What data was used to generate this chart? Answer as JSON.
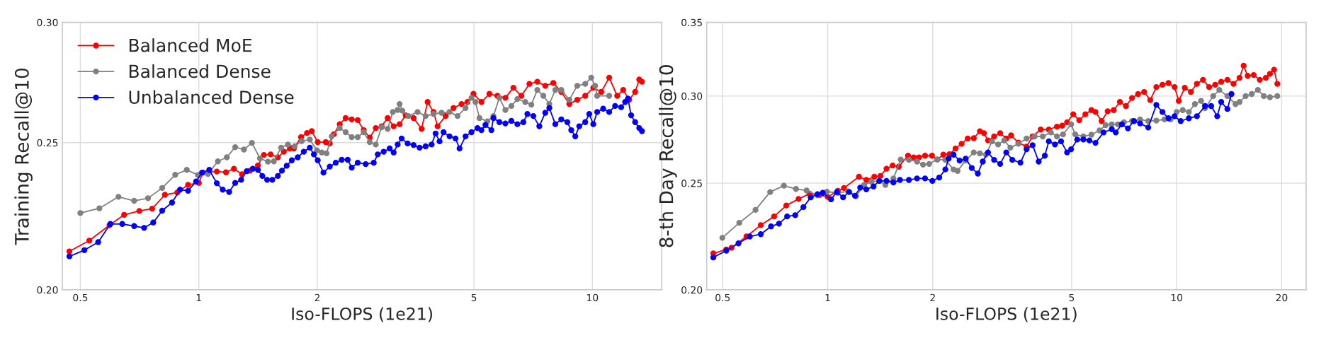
{
  "chart_data": [
    {
      "type": "line",
      "xlabel": "Iso-FLOPS (1e21)",
      "ylabel": "Training Recall@10",
      "log": "xy",
      "grid": true,
      "marker": "circle",
      "line_style": "solid",
      "legend": "top left",
      "xlim": [
        0.45,
        15
      ],
      "xticks": [
        0.5,
        1,
        2,
        5,
        10
      ],
      "ylim": [
        0.2,
        0.3
      ],
      "yticks": [
        {
          "value": 0.2,
          "label": "0.20"
        },
        {
          "value": 0.25,
          "label": "0.25"
        },
        {
          "value": 0.3,
          "label": "0.30"
        }
      ],
      "series": [
        {
          "name": "Balanced MoE",
          "color": "#ff0000",
          "x": [
            0.469,
            0.527,
            0.593,
            0.646,
            0.706,
            0.761,
            0.82,
            0.882,
            0.939,
            1,
            1.024,
            1.111,
            1.172,
            1.228,
            1.287,
            1.348,
            1.413,
            1.463,
            1.522,
            1.588,
            1.644,
            1.703,
            1.744,
            1.818,
            1.883,
            1.936,
            2.005,
            2.101,
            2.151,
            2.202,
            2.28,
            2.361,
            2.446,
            2.533,
            2.624,
            2.718,
            2.815,
            2.914,
            3.018,
            3.126,
            3.237,
            3.353,
            3.513,
            3.681,
            3.813,
            3.948,
            4.042,
            4.235,
            4.437,
            4.65,
            4.815,
            4.986,
            5.224,
            5.473,
            5.735,
            6.009,
            6.297,
            6.599,
            6.916,
            7.244,
            7.59,
            7.954,
            8.335,
            8.734,
            9.152,
            9.588,
            10.05,
            10.53,
            11.03,
            11.56,
            11.97,
            12.4,
            12.84,
            13.15,
            13.36
          ],
          "values": [
            0.212,
            0.2155,
            0.2206,
            0.2241,
            0.2254,
            0.2262,
            0.231,
            0.2318,
            0.2345,
            0.2352,
            0.2389,
            0.2393,
            0.239,
            0.2403,
            0.2383,
            0.2396,
            0.2415,
            0.2454,
            0.2456,
            0.2445,
            0.2466,
            0.2478,
            0.2478,
            0.2521,
            0.2537,
            0.2544,
            0.2502,
            0.2502,
            0.2497,
            0.2532,
            0.2571,
            0.2595,
            0.259,
            0.2587,
            0.2548,
            0.2519,
            0.2556,
            0.2563,
            0.2595,
            0.2563,
            0.2571,
            0.2606,
            0.2595,
            0.2553,
            0.2659,
            0.2619,
            0.2563,
            0.2603,
            0.2635,
            0.2651,
            0.2659,
            0.2692,
            0.2659,
            0.2692,
            0.2684,
            0.2676,
            0.2717,
            0.2684,
            0.2733,
            0.2742,
            0.2725,
            0.2737,
            0.27,
            0.2651,
            0.2668,
            0.2684,
            0.2717,
            0.27,
            0.2759,
            0.2684,
            0.2708,
            0.2668,
            0.27,
            0.2751,
            0.2742
          ]
        },
        {
          "name": "Balanced Dense",
          "color": "#808080",
          "x": [
            0.5,
            0.559,
            0.625,
            0.685,
            0.743,
            0.807,
            0.871,
            0.932,
            0.995,
            1.055,
            1.118,
            1.178,
            1.237,
            1.302,
            1.364,
            1.43,
            1.498,
            1.551,
            1.618,
            1.684,
            1.752,
            1.826,
            1.914,
            1.996,
            2.053,
            2.111,
            2.176,
            2.28,
            2.361,
            2.446,
            2.533,
            2.624,
            2.718,
            2.815,
            2.914,
            3.018,
            3.111,
            3.2,
            3.237,
            3.29,
            3.408,
            3.595,
            3.769,
            3.948,
            4.137,
            4.335,
            4.543,
            4.76,
            4.928,
            5.045,
            5.164,
            5.41,
            5.603,
            5.802,
            6.009,
            6.224,
            6.446,
            6.753,
            6.994,
            7.244,
            7.503,
            7.771,
            8.049,
            8.335,
            8.734,
            9.152,
            9.588,
            9.93,
            10.16,
            10.28,
            11.03
          ],
          "values": [
            0.2247,
            0.2263,
            0.2303,
            0.2289,
            0.2298,
            0.2334,
            0.2381,
            0.2399,
            0.238,
            0.2384,
            0.243,
            0.2445,
            0.2483,
            0.2474,
            0.2499,
            0.2441,
            0.2429,
            0.243,
            0.2481,
            0.2493,
            0.2486,
            0.2506,
            0.2512,
            0.2471,
            0.2463,
            0.246,
            0.2524,
            0.2556,
            0.254,
            0.2521,
            0.2521,
            0.254,
            0.2502,
            0.2493,
            0.2559,
            0.2553,
            0.2619,
            0.2627,
            0.2651,
            0.2624,
            0.2603,
            0.2619,
            0.2603,
            0.2611,
            0.2616,
            0.2619,
            0.2603,
            0.2635,
            0.2676,
            0.2659,
            0.2595,
            0.2582,
            0.2603,
            0.2676,
            0.2627,
            0.2643,
            0.2671,
            0.2659,
            0.2648,
            0.2708,
            0.2684,
            0.2651,
            0.2708,
            0.2708,
            0.2668,
            0.2725,
            0.2733,
            0.2759,
            0.2725,
            0.2684,
            0.2684
          ]
        },
        {
          "name": "Unbalanced Dense",
          "color": "#0000ff",
          "x": [
            0.469,
            0.512,
            0.555,
            0.596,
            0.639,
            0.685,
            0.726,
            0.766,
            0.807,
            0.855,
            0.896,
            0.939,
            0.984,
            1.019,
            1.063,
            1.111,
            1.15,
            1.194,
            1.237,
            1.281,
            1.323,
            1.371,
            1.413,
            1.45,
            1.491,
            1.537,
            1.588,
            1.626,
            1.672,
            1.723,
            1.784,
            1.848,
            1.914,
            1.96,
            2.005,
            2.073,
            2.151,
            2.228,
            2.307,
            2.389,
            2.446,
            2.533,
            2.654,
            2.782,
            2.848,
            2.949,
            3.054,
            3.126,
            3.2,
            3.275,
            3.392,
            3.513,
            3.638,
            3.769,
            3.903,
            3.995,
            4.089,
            4.186,
            4.335,
            4.489,
            4.596,
            4.76,
            4.928,
            5.104,
            5.224,
            5.348,
            5.538,
            5.603,
            5.802,
            6.009,
            6.224,
            6.446,
            6.676,
            6.835,
            7.077,
            7.329,
            7.59,
            7.771,
            8.049,
            8.335,
            8.632,
            8.835,
            9.045,
            9.259,
            9.588,
            9.815,
            10.05,
            10.28,
            10.65,
            11.03,
            11.42,
            11.83,
            12.11,
            12.31,
            12.54,
            12.84,
            13.15,
            13.36
          ],
          "values": [
            0.2104,
            0.2124,
            0.215,
            0.221,
            0.221,
            0.2203,
            0.2197,
            0.2215,
            0.2255,
            0.2283,
            0.2328,
            0.2324,
            0.2357,
            0.2389,
            0.2399,
            0.2351,
            0.2328,
            0.232,
            0.2352,
            0.2363,
            0.2394,
            0.2403,
            0.2399,
            0.2377,
            0.2363,
            0.2363,
            0.2377,
            0.2396,
            0.2414,
            0.2434,
            0.2445,
            0.2466,
            0.2481,
            0.2456,
            0.2434,
            0.2389,
            0.2411,
            0.2425,
            0.2436,
            0.2436,
            0.2407,
            0.2425,
            0.242,
            0.2425,
            0.2456,
            0.2466,
            0.2478,
            0.2463,
            0.2493,
            0.2516,
            0.2497,
            0.2491,
            0.2481,
            0.2486,
            0.2493,
            0.2535,
            0.2505,
            0.254,
            0.2524,
            0.2516,
            0.2478,
            0.2524,
            0.254,
            0.2556,
            0.2548,
            0.2568,
            0.2548,
            0.2595,
            0.2579,
            0.2574,
            0.2584,
            0.2571,
            0.2579,
            0.2611,
            0.2603,
            0.2563,
            0.2616,
            0.2635,
            0.2571,
            0.259,
            0.2579,
            0.2548,
            0.2524,
            0.2563,
            0.2579,
            0.2611,
            0.2571,
            0.2619,
            0.2632,
            0.2619,
            0.2643,
            0.2638,
            0.2659,
            0.2673,
            0.2606,
            0.2579,
            0.2556,
            0.2544
          ]
        }
      ]
    },
    {
      "type": "line",
      "xlabel": "Iso-FLOPS (1e21)",
      "ylabel": "8-th Day Recall@10",
      "log": "xy",
      "grid": true,
      "marker": "circle",
      "line_style": "solid",
      "xlim": [
        0.45,
        23.5
      ],
      "xticks": [
        0.5,
        1,
        2,
        5,
        10,
        20
      ],
      "ylim": [
        0.2,
        0.35
      ],
      "yticks": [
        {
          "value": 0.2,
          "label": "0.20"
        },
        {
          "value": 0.25,
          "label": "0.25"
        },
        {
          "value": 0.3,
          "label": "0.30"
        },
        {
          "value": 0.35,
          "label": "0.35"
        }
      ],
      "series": [
        {
          "color": "#ff0000",
          "x": [
            0.47,
            0.512,
            0.53,
            0.585,
            0.643,
            0.702,
            0.761,
            0.825,
            0.887,
            0.948,
            1,
            1.069,
            1.113,
            1.229,
            1.29,
            1.36,
            1.416,
            1.474,
            1.535,
            1.598,
            1.699,
            1.764,
            1.826,
            1.901,
            1.99,
            2.061,
            2.145,
            2.233,
            2.324,
            2.42,
            2.519,
            2.622,
            2.729,
            2.804,
            2.88,
            2.998,
            3.121,
            3.249,
            3.354,
            3.52,
            3.714,
            3.866,
            4.078,
            4.302,
            4.539,
            4.699,
            4.853,
            5.052,
            5.259,
            5.474,
            5.699,
            5.853,
            6.094,
            6.344,
            6.604,
            6.875,
            7.156,
            7.449,
            7.754,
            8.072,
            8.403,
            8.747,
            9.106,
            9.478,
            9.867,
            10.14,
            10.55,
            10.98,
            11.43,
            11.9,
            12.39,
            12.9,
            13.42,
            13.98,
            14.55,
            15.15,
            15.56,
            15.98,
            16.63,
            17.31,
            18.02,
            18.51,
            19.02,
            19.43
          ],
          "values": [
            0.2158,
            0.2176,
            0.2184,
            0.2236,
            0.229,
            0.2332,
            0.2386,
            0.2419,
            0.2445,
            0.2439,
            0.2429,
            0.246,
            0.2475,
            0.2534,
            0.2517,
            0.2534,
            0.2538,
            0.2577,
            0.2594,
            0.2588,
            0.2648,
            0.2639,
            0.2639,
            0.2648,
            0.2648,
            0.2627,
            0.2654,
            0.2656,
            0.2688,
            0.2715,
            0.2745,
            0.2747,
            0.2787,
            0.2776,
            0.2734,
            0.2757,
            0.2776,
            0.2745,
            0.2763,
            0.2722,
            0.2699,
            0.2757,
            0.2797,
            0.2797,
            0.2814,
            0.282,
            0.284,
            0.2888,
            0.2852,
            0.2888,
            0.2913,
            0.2902,
            0.2847,
            0.2906,
            0.2913,
            0.2963,
            0.2938,
            0.2988,
            0.3013,
            0.3026,
            0.2975,
            0.3057,
            0.3072,
            0.3083,
            0.3057,
            0.297,
            0.3052,
            0.3026,
            0.3078,
            0.3104,
            0.3057,
            0.3072,
            0.3091,
            0.3104,
            0.3078,
            0.3117,
            0.3197,
            0.313,
            0.3135,
            0.3104,
            0.3117,
            0.3143,
            0.317,
            0.3078
          ]
        },
        {
          "color": "#808080",
          "x": [
            0.499,
            0.558,
            0.621,
            0.684,
            0.749,
            0.811,
            0.87,
            0.935,
            0.995,
            1.069,
            1.143,
            1.206,
            1.272,
            1.335,
            1.409,
            1.463,
            1.543,
            1.619,
            1.709,
            1.803,
            1.876,
            1.953,
            2.061,
            2.174,
            2.294,
            2.356,
            2.485,
            2.622,
            2.729,
            2.841,
            2.958,
            3.079,
            3.205,
            3.337,
            3.52,
            3.714,
            3.917,
            4.133,
            4.36,
            4.539,
            4.726,
            4.985,
            5.121,
            5.403,
            5.699,
            6.012,
            6.259,
            6.516,
            6.784,
            7.062,
            7.449,
            7.858,
            8.29,
            8.747,
            9.228,
            9.607,
            10,
            10.41,
            10.84,
            11.28,
            11.75,
            12.06,
            12.73,
            13.25,
            13.98,
            14.75,
            15.15,
            15.77,
            16.41,
            17.09,
            17.78,
            18.51,
            19.43
          ],
          "values": [
            0.223,
            0.2301,
            0.2364,
            0.2454,
            0.2487,
            0.247,
            0.2462,
            0.2437,
            0.2456,
            0.245,
            0.2458,
            0.2433,
            0.2491,
            0.2508,
            0.2512,
            0.2491,
            0.2525,
            0.2627,
            0.2625,
            0.2616,
            0.2599,
            0.2603,
            0.2627,
            0.2625,
            0.2573,
            0.2565,
            0.2621,
            0.2666,
            0.2661,
            0.2654,
            0.2729,
            0.2711,
            0.2734,
            0.2693,
            0.2715,
            0.2745,
            0.2757,
            0.2757,
            0.278,
            0.2757,
            0.2769,
            0.2828,
            0.2769,
            0.2757,
            0.2767,
            0.2792,
            0.2823,
            0.2828,
            0.2828,
            0.284,
            0.2847,
            0.2857,
            0.2847,
            0.285,
            0.2857,
            0.2857,
            0.2902,
            0.2913,
            0.2902,
            0.295,
            0.297,
            0.2925,
            0.3,
            0.3039,
            0.3,
            0.295,
            0.2963,
            0.3,
            0.3013,
            0.3039,
            0.3,
            0.2993,
            0.3
          ]
        },
        {
          "color": "#0000ff",
          "x": [
            0.47,
            0.512,
            0.555,
            0.598,
            0.643,
            0.688,
            0.725,
            0.765,
            0.807,
            0.852,
            0.894,
            0.935,
            0.968,
            1.022,
            1.063,
            1.107,
            1.152,
            1.197,
            1.239,
            1.29,
            1.353,
            1.405,
            1.474,
            1.543,
            1.611,
            1.709,
            1.803,
            1.901,
            1.995,
            2.088,
            2.174,
            2.221,
            2.294,
            2.388,
            2.485,
            2.587,
            2.693,
            2.782,
            2.88,
            2.998,
            3.121,
            3.249,
            3.382,
            3.567,
            3.714,
            3.866,
            4.024,
            4.19,
            4.302,
            4.48,
            4.664,
            4.853,
            4.985,
            5.189,
            5.403,
            5.623,
            5.853,
            6.175,
            6.516,
            6.69,
            6.966,
            7.252,
            7.549,
            7.858,
            8.29,
            8.747,
            9.106,
            9.478,
            9.867,
            10.27,
            10.84,
            11.43,
            12.06,
            12.56,
            13.07,
            13.42,
            13.98,
            14.36
          ],
          "values": [
            0.214,
            0.2171,
            0.2204,
            0.2236,
            0.2247,
            0.2284,
            0.2297,
            0.2332,
            0.2338,
            0.2378,
            0.2427,
            0.2443,
            0.245,
            0.2417,
            0.2454,
            0.2427,
            0.2454,
            0.2435,
            0.2477,
            0.2468,
            0.2483,
            0.2512,
            0.2512,
            0.2504,
            0.2517,
            0.2517,
            0.2525,
            0.2525,
            0.2512,
            0.253,
            0.2573,
            0.2632,
            0.2654,
            0.2621,
            0.2632,
            0.2581,
            0.2551,
            0.2616,
            0.2666,
            0.2625,
            0.2603,
            0.2666,
            0.2625,
            0.261,
            0.2684,
            0.2707,
            0.2616,
            0.2648,
            0.2729,
            0.2711,
            0.2729,
            0.2666,
            0.2684,
            0.2739,
            0.2739,
            0.2734,
            0.272,
            0.278,
            0.2799,
            0.278,
            0.2828,
            0.2804,
            0.2847,
            0.2833,
            0.2809,
            0.2945,
            0.2902,
            0.2864,
            0.2876,
            0.2847,
            0.2864,
            0.2876,
            0.2938,
            0.2938,
            0.2876,
            0.2963,
            0.292,
            0.3013
          ]
        }
      ]
    }
  ]
}
